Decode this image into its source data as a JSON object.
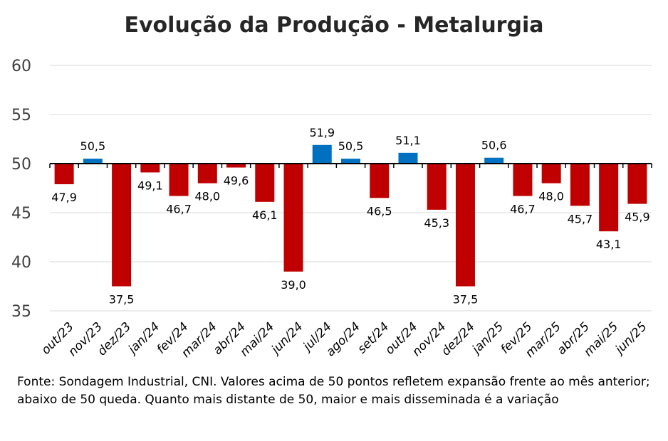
{
  "chart_data": {
    "type": "bar",
    "title": "Evolução da Produção - Metalurgia",
    "xlabel": "",
    "ylabel": "",
    "baseline": 50,
    "ylim": [
      35,
      60
    ],
    "yticks": [
      "35",
      "40",
      "45",
      "50",
      "55",
      "60"
    ],
    "grid": true,
    "categories": [
      "out/23",
      "nov/23",
      "dez/23",
      "jan/24",
      "fev/24",
      "mar/24",
      "abr/24",
      "mai/24",
      "jun/24",
      "jul/24",
      "ago/24",
      "set/24",
      "out/24",
      "nov/24",
      "dez/24",
      "jan/25",
      "fev/25",
      "mar/25",
      "abr/25",
      "mai/25",
      "jun/25"
    ],
    "values": [
      47.9,
      50.5,
      37.5,
      49.1,
      46.7,
      48.0,
      49.6,
      46.1,
      39.0,
      51.9,
      50.5,
      46.5,
      51.1,
      45.3,
      37.5,
      50.6,
      46.7,
      48.0,
      45.7,
      43.1,
      45.9
    ],
    "labels": [
      "47,9",
      "50,5",
      "37,5",
      "49,1",
      "46,7",
      "48,0",
      "49,6",
      "46,1",
      "39,0",
      "51,9",
      "50,5",
      "46,5",
      "51,1",
      "45,3",
      "37,5",
      "50,6",
      "46,7",
      "48,0",
      "45,7",
      "43,1",
      "45,9"
    ],
    "colors": {
      "above": "#0070C0",
      "below": "#C00000",
      "grid": "#D9D9D9",
      "axis": "#000000"
    }
  },
  "footnote": "Fonte: Sondagem Industrial, CNI. Valores acima de 50 pontos refletem expansão frente ao mês anterior; abaixo de 50 queda. Quanto mais distante de 50, maior e mais disseminada é a variação"
}
